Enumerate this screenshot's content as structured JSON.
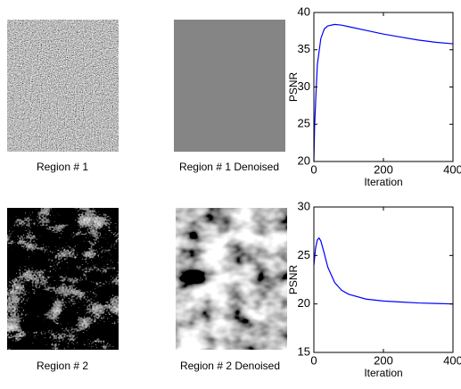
{
  "images": [
    {
      "caption": "Region # 1"
    },
    {
      "caption": "Region # 1 Denoised"
    },
    {
      "caption": "Region # 2"
    },
    {
      "caption": "Region # 2 Denoised"
    }
  ],
  "chart_data": [
    {
      "type": "line",
      "xlabel": "Iteration",
      "ylabel": "PSNR",
      "x": [
        0,
        2,
        5,
        10,
        20,
        30,
        40,
        60,
        80,
        100,
        150,
        200,
        250,
        300,
        350,
        400
      ],
      "series": [
        {
          "color": "#0000ff",
          "values": [
            20,
            24.5,
            28,
            33,
            36.5,
            37.8,
            38.2,
            38.4,
            38.3,
            38.1,
            37.6,
            37.1,
            36.7,
            36.3,
            36.0,
            35.8
          ]
        }
      ],
      "xlim": [
        0,
        400
      ],
      "xticks": [
        0,
        200,
        400
      ],
      "ylim": [
        20,
        40
      ],
      "yticks": [
        20,
        25,
        30,
        35,
        40
      ]
    },
    {
      "type": "line",
      "xlabel": "Iteration",
      "ylabel": "PSNR",
      "x": [
        0,
        5,
        10,
        15,
        20,
        30,
        40,
        60,
        80,
        100,
        150,
        200,
        250,
        300,
        350,
        400
      ],
      "series": [
        {
          "color": "#0000ff",
          "values": [
            24,
            25.8,
            26.6,
            26.8,
            26.5,
            25.2,
            23.8,
            22.2,
            21.4,
            21.0,
            20.5,
            20.3,
            20.2,
            20.1,
            20.05,
            20.0
          ]
        }
      ],
      "xlim": [
        0,
        400
      ],
      "xticks": [
        0,
        200,
        400
      ],
      "ylim": [
        15,
        30
      ],
      "yticks": [
        15,
        20,
        25,
        30
      ]
    }
  ]
}
